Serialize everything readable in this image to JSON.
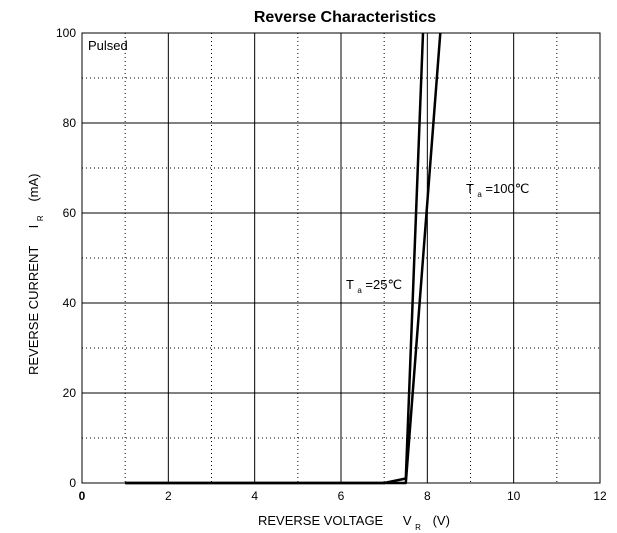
{
  "chart_data": {
    "type": "line",
    "title": "Reverse   Characteristics",
    "xlabel": {
      "main": "REVERSE VOLTAGE",
      "symbol": "V",
      "subscript": "R",
      "unit": "(V)"
    },
    "ylabel": {
      "main": "REVERSE  CURRENT",
      "symbol": "I",
      "subscript": "R",
      "unit": "(mA)"
    },
    "x_ticks": [
      {
        "value": 0,
        "label": "0"
      },
      {
        "value": 2,
        "label": "2"
      },
      {
        "value": 4,
        "label": "4"
      },
      {
        "value": 6,
        "label": "6"
      },
      {
        "value": 8,
        "label": "8"
      },
      {
        "value": 10,
        "label": "10"
      },
      {
        "value": 12,
        "label": "12"
      }
    ],
    "y_ticks": [
      {
        "value": 0,
        "label": "0"
      },
      {
        "value": 20,
        "label": "20"
      },
      {
        "value": 40,
        "label": "40"
      },
      {
        "value": 60,
        "label": "60"
      },
      {
        "value": 80,
        "label": "80"
      },
      {
        "value": 100,
        "label": "100"
      }
    ],
    "xlim": [
      0,
      12
    ],
    "ylim": [
      0,
      100
    ],
    "grid": true,
    "annotation": "Pulsed",
    "series": [
      {
        "name": "T_a=25℃",
        "label": {
          "symbol": "T",
          "subscript": "a",
          "rest": "=25℃"
        },
        "x": [
          1,
          6.5,
          7.0,
          7.5,
          7.9
        ],
        "y": [
          0,
          0,
          0,
          1,
          100
        ]
      },
      {
        "name": "T_a=100℃",
        "label": {
          "symbol": "T",
          "subscript": "a",
          "rest": "=100℃"
        },
        "x": [
          1,
          7.5,
          8.3
        ],
        "y": [
          0,
          0,
          100
        ]
      }
    ]
  }
}
